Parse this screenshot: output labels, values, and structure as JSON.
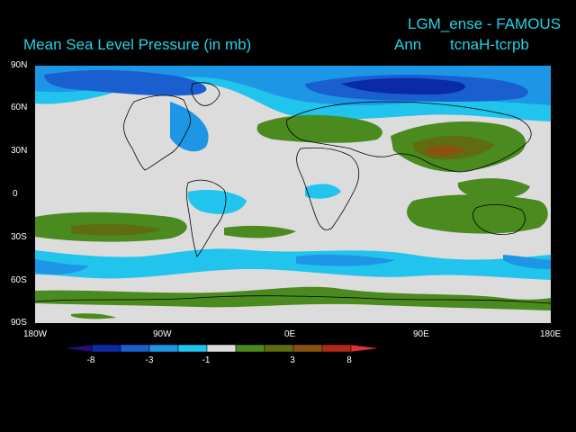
{
  "title": {
    "main": "Mean Sea Level Pressure (in mb)",
    "experiment": "LGM_ense - FAMOUS",
    "period": "Ann",
    "difference": "tcnaH-tcrpb"
  },
  "axes": {
    "x_ticks": [
      "180W",
      "90W",
      "0E",
      "90E",
      "180E"
    ],
    "y_ticks": [
      "90N",
      "60N",
      "30N",
      "0",
      "30S",
      "60S",
      "90S"
    ]
  },
  "colorbar": {
    "labels": [
      "-8",
      "-3",
      "-1",
      "3",
      "8"
    ],
    "colors": [
      "#2a0a7a",
      "#0a2aa8",
      "#1a5fd0",
      "#1e96e6",
      "#20c4ec",
      "#dcdcdc",
      "#4a8a1e",
      "#5f6d10",
      "#8a5210",
      "#b02818",
      "#e03030"
    ]
  },
  "palette": {
    "background": "#000000",
    "neutral": "#dcdcdc",
    "title": "#22d3e8",
    "coast": "#000000"
  }
}
